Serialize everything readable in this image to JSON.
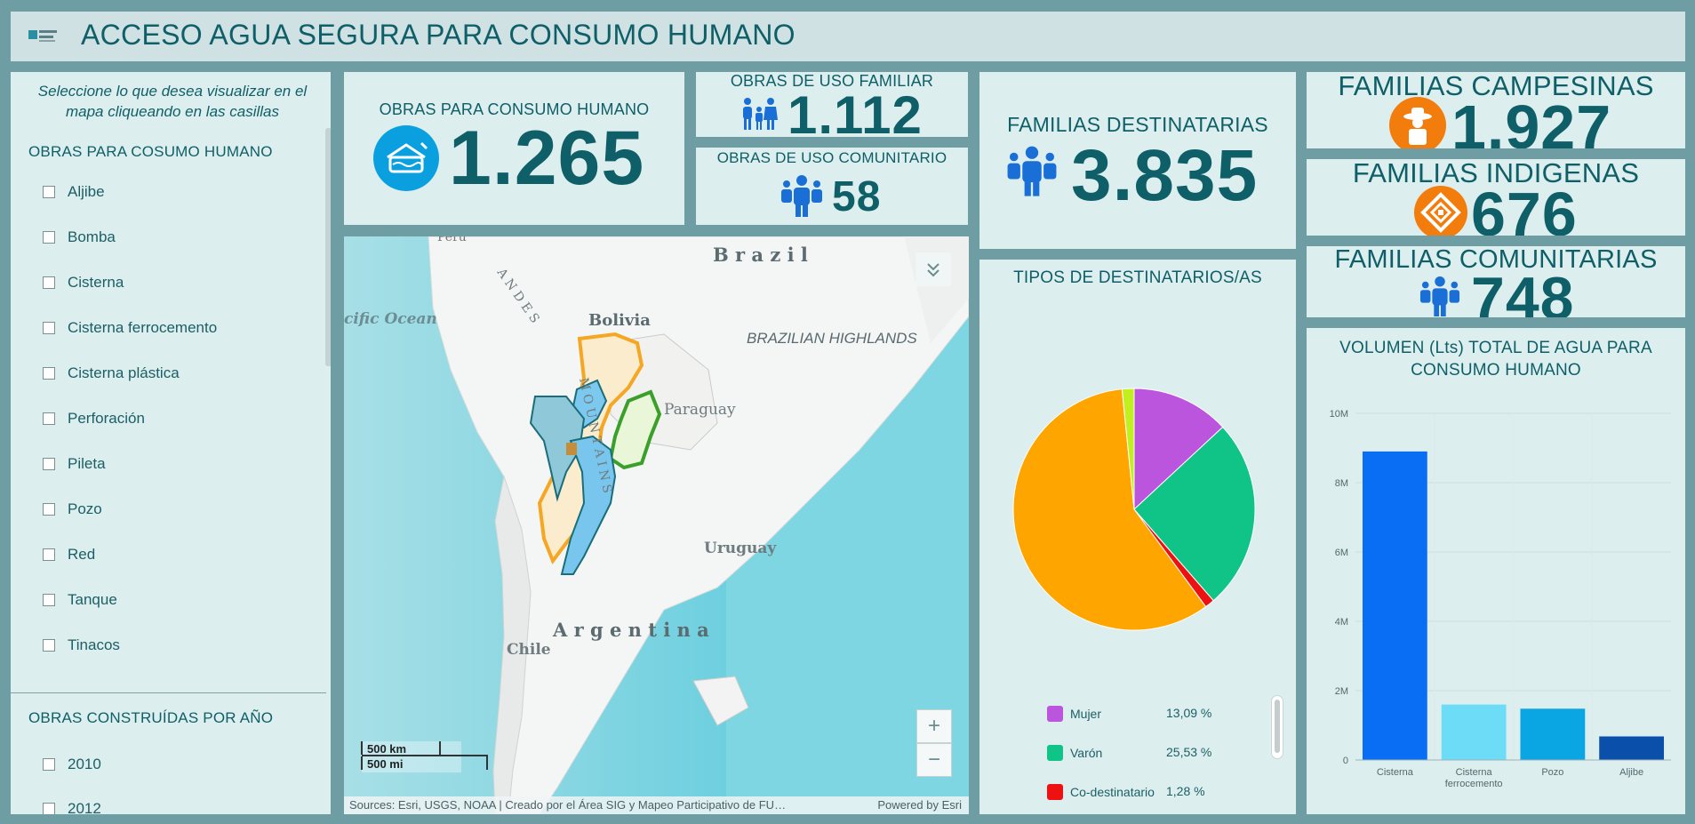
{
  "header": {
    "title": "ACCESO AGUA SEGURA PARA CONSUMO HUMANO",
    "logo_icon": "org-logo"
  },
  "sidebar": {
    "intro": "Seleccione lo que desea visualizar en el mapa cliqueando en las casillas",
    "section1_title": "OBRAS PARA COSUMO HUMANO",
    "items": [
      "Aljibe",
      "Bomba",
      "Cisterna",
      "Cisterna ferrocemento",
      "Cisterna plástica",
      "Perforación",
      "Pileta",
      "Pozo",
      "Red",
      "Tanque",
      "Tinacos"
    ],
    "section2_title": "OBRAS CONSTRUÍDAS POR AÑO",
    "years": [
      "2010",
      "2012"
    ]
  },
  "kpis": {
    "obras_consumo": {
      "label": "OBRAS PARA CONSUMO HUMANO",
      "value": "1.265"
    },
    "uso_familiar": {
      "label": "OBRAS DE USO FAMILIAR",
      "value": "1.112"
    },
    "uso_comunitario": {
      "label": "OBRAS DE USO COMUNITARIO",
      "value": "58"
    },
    "familias_destinatarias": {
      "label": "FAMILIAS DESTINATARIAS",
      "value": "3.835"
    },
    "campesinas": {
      "label": "FAMILIAS CAMPESINAS",
      "value": "1.927"
    },
    "indigenas": {
      "label": "FAMILIAS INDIGENAS",
      "value": "676"
    },
    "comunitarias": {
      "label": "FAMILIAS COMUNITARIAS",
      "value": "748"
    }
  },
  "map": {
    "labels": {
      "brazil": "B r a z i l",
      "bolivia": "Bolivia",
      "ocean": "cific Ocean",
      "highlands": "BRAZILIAN HIGHLANDS",
      "paraguay": "Paraguay",
      "uruguay": "Uruguay",
      "argentina": "A r g e n t i n a",
      "chile": "Chile",
      "andes": "A N D E S",
      "mountains": "M O U N T A I N S",
      "peru": "Peru"
    },
    "scale_km": "500 km",
    "scale_mi": "500 mi",
    "zoom_in": "+",
    "zoom_out": "−",
    "attribution": "Sources: Esri, USGS, NOAA | Creado por el Área SIG y Mapeo Participativo de FU…",
    "powered": "Powered by Esri"
  },
  "pie": {
    "title": "TIPOS DE DESTINATARIOS/AS",
    "chart_data": {
      "type": "pie",
      "slices": [
        {
          "label": "Mujer",
          "percent": 13.09,
          "display": "13,09 %",
          "color": "#bb55dd"
        },
        {
          "label": "Varón",
          "percent": 25.53,
          "display": "25,53 %",
          "color": "#10c387"
        },
        {
          "label": "Co-destinatario",
          "percent": 1.28,
          "display": "1,28 %",
          "color": "#ee1111"
        },
        {
          "label": "",
          "percent": 58.5,
          "display": "",
          "color": "#ffa500"
        },
        {
          "label": "",
          "percent": 1.6,
          "display": "",
          "color": "#c0f020"
        }
      ]
    }
  },
  "bar": {
    "title": "VOLUMEN (Lts) TOTAL DE AGUA PARA CONSUMO HUMANO",
    "chart_data": {
      "type": "bar",
      "categories": [
        "Cisterna",
        "Cisterna ferrocemento",
        "Pozo",
        "Aljibe"
      ],
      "values": [
        8900000,
        1600000,
        1480000,
        680000
      ],
      "colors": [
        "#0a6ef5",
        "#6ddcf7",
        "#0aa6e3",
        "#0a4faa"
      ],
      "ylim": [
        0,
        10000000
      ],
      "yticks": [
        {
          "v": 0,
          "label": "0"
        },
        {
          "v": 2000000,
          "label": "2M"
        },
        {
          "v": 4000000,
          "label": "4M"
        },
        {
          "v": 6000000,
          "label": "6M"
        },
        {
          "v": 8000000,
          "label": "8M"
        },
        {
          "v": 10000000,
          "label": "10M"
        }
      ]
    }
  }
}
